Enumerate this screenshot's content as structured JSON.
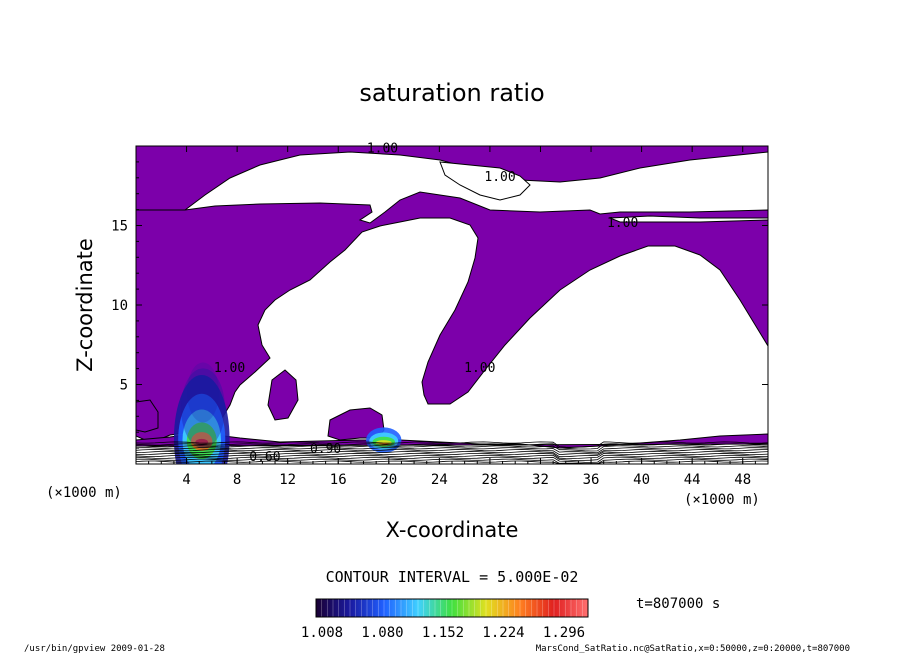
{
  "chart_data": {
    "type": "contour",
    "title": "saturation ratio",
    "xlabel": "X-coordinate",
    "ylabel": "Z-coordinate",
    "x_unit": "(×1000 m)",
    "x_unit_right": "(×1000 m)",
    "xlim": [
      0,
      50
    ],
    "ylim": [
      0,
      20
    ],
    "x_ticks": [
      4,
      8,
      12,
      16,
      20,
      24,
      28,
      32,
      36,
      40,
      44,
      48
    ],
    "y_ticks": [
      5,
      10,
      15
    ],
    "contour_labels": [
      {
        "text": "1.00",
        "x": 19.5,
        "z": 19.6
      },
      {
        "text": "1.00",
        "x": 28.8,
        "z": 17.8
      },
      {
        "text": "1.00",
        "x": 38.5,
        "z": 14.9
      },
      {
        "text": "1.00",
        "x": 7.4,
        "z": 5.8
      },
      {
        "text": "1.00",
        "x": 27.2,
        "z": 5.8
      },
      {
        "text": "0.60",
        "x": 10.2,
        "z": 0.2
      },
      {
        "text": "0.90",
        "x": 15.0,
        "z": 0.7
      }
    ],
    "contour_interval_label": "CONTOUR INTERVAL = 5.000E-02",
    "colorbar": {
      "tick_labels": [
        "1.008",
        "1.080",
        "1.152",
        "1.224",
        "1.296"
      ],
      "min": 1.008,
      "max": 1.296,
      "colors": [
        "#1a0033",
        "#1a1aa0",
        "#2060ff",
        "#40d0ff",
        "#40e040",
        "#e0e020",
        "#ff8020",
        "#e02020",
        "#ff7070"
      ]
    },
    "fill_color": "#7c00aa",
    "time_label": "t=807000 s"
  },
  "footer": {
    "left": "/usr/bin/gpview  2009-01-28",
    "right": "MarsCond_SatRatio.nc@SatRatio,x=0:50000,z=0:20000,t=807000"
  }
}
